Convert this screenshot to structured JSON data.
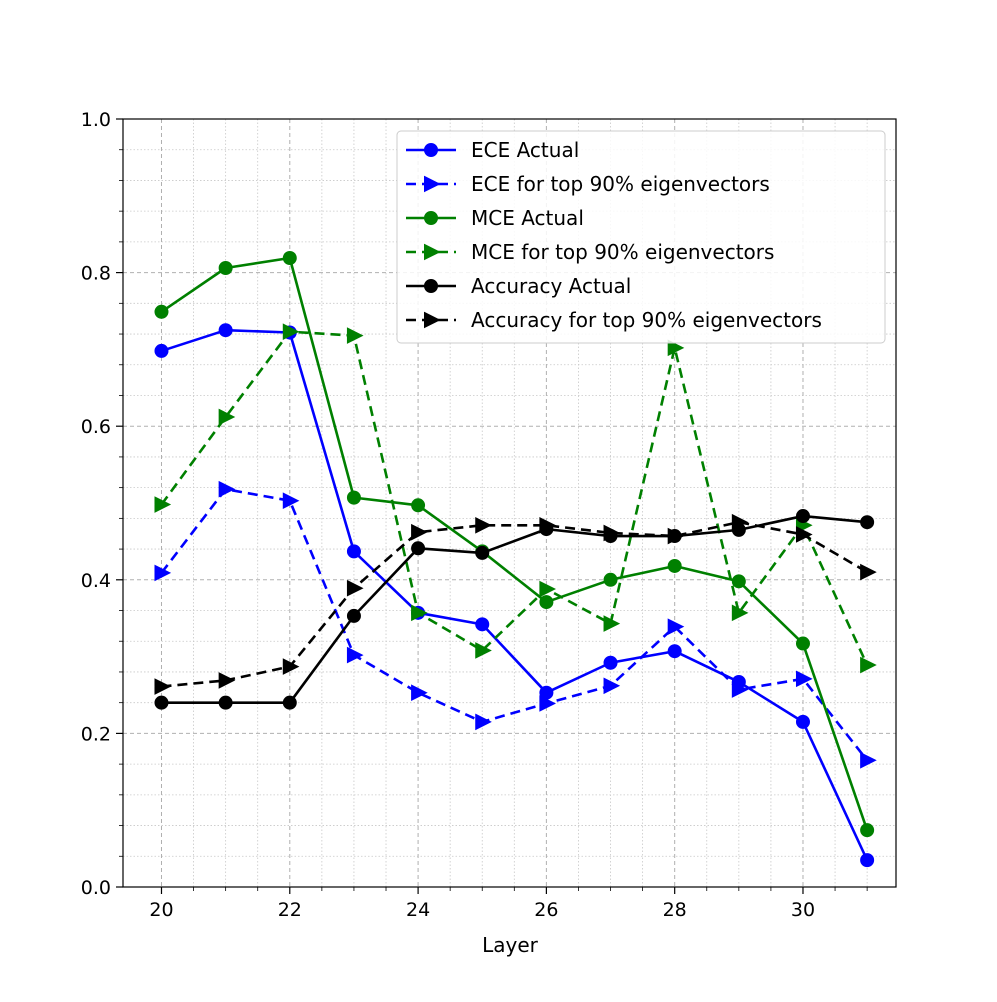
{
  "chart_data": {
    "type": "line",
    "title": "",
    "xlabel": "Layer",
    "ylabel": "",
    "xlim": [
      19.4,
      31.45
    ],
    "ylim": [
      0.0,
      1.0
    ],
    "grid": true,
    "legend_position": "top-right",
    "xticks": [
      "20",
      "22",
      "24",
      "26",
      "28",
      "30"
    ],
    "yticks": [
      "0.0",
      "0.2",
      "0.4",
      "0.6",
      "0.8",
      "1.0"
    ],
    "x": [
      20,
      21,
      22,
      23,
      24,
      25,
      26,
      27,
      28,
      29,
      30,
      31
    ],
    "series": [
      {
        "name": "ECE Actual",
        "color": "#0000ff",
        "style": "solid",
        "marker": "circle",
        "values": [
          0.698,
          0.725,
          0.722,
          0.437,
          0.357,
          0.342,
          0.253,
          0.292,
          0.307,
          0.267,
          0.215,
          0.035
        ]
      },
      {
        "name": "ECE for top 90% eigenvectors",
        "color": "#0000ff",
        "style": "dashed",
        "marker": "triangle-right",
        "values": [
          0.409,
          0.518,
          0.503,
          0.302,
          0.253,
          0.215,
          0.239,
          0.262,
          0.339,
          0.257,
          0.271,
          0.165
        ]
      },
      {
        "name": "MCE Actual",
        "color": "#008000",
        "style": "solid",
        "marker": "circle",
        "values": [
          0.749,
          0.806,
          0.819,
          0.507,
          0.497,
          0.437,
          0.371,
          0.4,
          0.418,
          0.398,
          0.317,
          0.074
        ]
      },
      {
        "name": "MCE for top 90% eigenvectors",
        "color": "#008000",
        "style": "dashed",
        "marker": "triangle-right",
        "values": [
          0.498,
          0.612,
          0.723,
          0.718,
          0.357,
          0.308,
          0.388,
          0.343,
          0.702,
          0.357,
          0.471,
          0.289
        ]
      },
      {
        "name": "Accuracy Actual",
        "color": "#000000",
        "style": "solid",
        "marker": "circle",
        "values": [
          0.24,
          0.24,
          0.24,
          0.353,
          0.441,
          0.435,
          0.466,
          0.457,
          0.457,
          0.465,
          0.483,
          0.475
        ]
      },
      {
        "name": "Accuracy for top 90% eigenvectors",
        "color": "#000000",
        "style": "dashed",
        "marker": "triangle-right",
        "values": [
          0.261,
          0.269,
          0.287,
          0.389,
          0.462,
          0.471,
          0.471,
          0.461,
          0.457,
          0.475,
          0.459,
          0.41
        ]
      }
    ]
  }
}
